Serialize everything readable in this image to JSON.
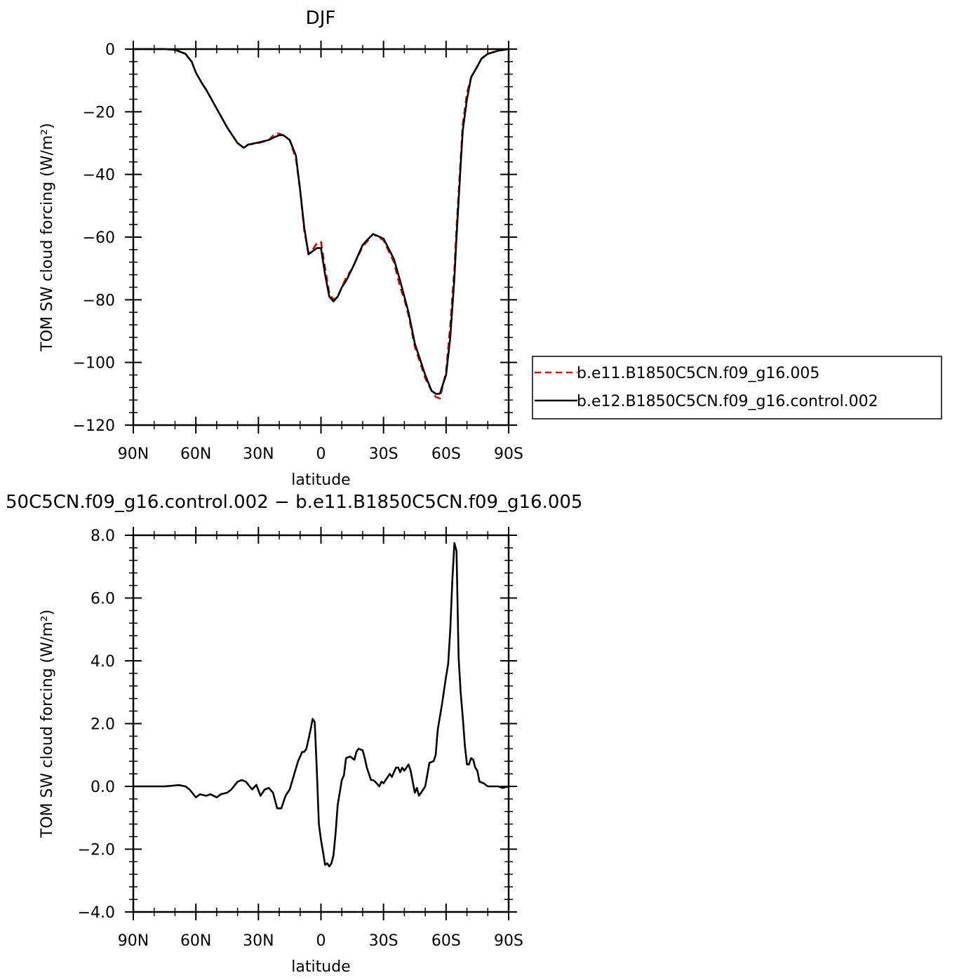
{
  "chart_data": [
    {
      "type": "line",
      "title": "DJF",
      "xlabel": "latitude",
      "ylabel": "TOM SW cloud forcing (W/m²)",
      "xlim": [
        -90,
        90
      ],
      "ylim": [
        -120,
        0
      ],
      "x_ticks": [
        {
          "value": -90,
          "label": "90N"
        },
        {
          "value": -60,
          "label": "60N"
        },
        {
          "value": -30,
          "label": "30N"
        },
        {
          "value": 0,
          "label": "0"
        },
        {
          "value": 30,
          "label": "30S"
        },
        {
          "value": 60,
          "label": "60S"
        },
        {
          "value": 90,
          "label": "90S"
        }
      ],
      "y_ticks": [
        {
          "value": 0,
          "label": "0"
        },
        {
          "value": -20,
          "label": "−20"
        },
        {
          "value": -40,
          "label": "−40"
        },
        {
          "value": -60,
          "label": "−60"
        },
        {
          "value": -80,
          "label": "−80"
        },
        {
          "value": -100,
          "label": "−100"
        },
        {
          "value": -120,
          "label": "−120"
        }
      ],
      "legend": {
        "placement": "right",
        "entries": [
          "b.e11.B1850C5CN.f09_g16.005",
          "b.e12.B1850C5CN.f09_g16.control.002"
        ]
      },
      "series": [
        {
          "name": "b.e11.B1850C5CN.f09_g16.005",
          "color": "#e00000",
          "dash": "dashed",
          "x": [
            -90,
            -85,
            -80,
            -75,
            -70,
            -65,
            -62,
            -60,
            -57,
            -55,
            -50,
            -45,
            -40,
            -37,
            -35,
            -30,
            -25,
            -22,
            -20,
            -18,
            -15,
            -12,
            -10,
            -8,
            -6,
            -4,
            -2,
            0,
            2,
            4,
            6,
            8,
            10,
            12,
            15,
            20,
            22,
            25,
            30,
            35,
            38,
            40,
            42,
            45,
            50,
            53,
            55,
            57,
            60,
            62,
            64,
            65,
            67,
            68,
            70,
            72,
            75,
            77,
            80,
            85,
            90
          ],
          "values": [
            0,
            0,
            0,
            0,
            -0.2,
            -1.5,
            -4,
            -7.5,
            -11,
            -13,
            -19,
            -25,
            -30,
            -31.5,
            -30.5,
            -30,
            -29,
            -27,
            -27,
            -27.5,
            -29,
            -35,
            -45,
            -58,
            -65,
            -64,
            -62,
            -61.5,
            -70,
            -78,
            -80,
            -79,
            -76,
            -73,
            -70,
            -63,
            -61.5,
            -59,
            -61,
            -68,
            -76,
            -80,
            -85,
            -95,
            -105,
            -109,
            -111,
            -111.5,
            -103,
            -88,
            -70,
            -57,
            -35,
            -24,
            -14,
            -9,
            -5.5,
            -3,
            -1.5,
            -0.5,
            0
          ]
        },
        {
          "name": "b.e12.B1850C5CN.f09_g16.control.002",
          "color": "#000000",
          "dash": "solid",
          "x": [
            -90,
            -85,
            -80,
            -75,
            -70,
            -65,
            -62,
            -60,
            -57,
            -55,
            -50,
            -45,
            -40,
            -37,
            -35,
            -30,
            -25,
            -22,
            -20,
            -18,
            -15,
            -12,
            -10,
            -8,
            -6,
            -4,
            -2,
            0,
            2,
            4,
            6,
            8,
            10,
            12,
            15,
            20,
            22,
            25,
            30,
            35,
            38,
            40,
            42,
            45,
            50,
            53,
            55,
            57,
            60,
            62,
            64,
            65,
            67,
            68,
            70,
            72,
            75,
            77,
            80,
            85,
            90
          ],
          "values": [
            0,
            0,
            0,
            0,
            -0.2,
            -1.5,
            -4,
            -7.5,
            -11,
            -13,
            -19,
            -25,
            -30,
            -31.5,
            -30.5,
            -29.8,
            -29,
            -28,
            -27.5,
            -27.5,
            -29,
            -34,
            -45,
            -57,
            -65.5,
            -64.5,
            -63.5,
            -63.5,
            -72,
            -79,
            -80.5,
            -79,
            -76,
            -74,
            -70,
            -62.5,
            -61,
            -59,
            -60.5,
            -67,
            -74,
            -79,
            -84,
            -94,
            -104,
            -109,
            -110,
            -110,
            -104,
            -92,
            -73,
            -60,
            -37,
            -26,
            -16,
            -9,
            -5.5,
            -3,
            -1.5,
            -0.5,
            0
          ]
        }
      ]
    },
    {
      "type": "line",
      "title": "50C5CN.f09_g16.control.002 − b.e11.B1850C5CN.f09_g16.005",
      "xlabel": "latitude",
      "ylabel": "TOM SW cloud forcing (W/m²)",
      "xlim": [
        -90,
        90
      ],
      "ylim": [
        -4,
        8
      ],
      "x_ticks": [
        {
          "value": -90,
          "label": "90N"
        },
        {
          "value": -60,
          "label": "60N"
        },
        {
          "value": -30,
          "label": "30N"
        },
        {
          "value": 0,
          "label": "0"
        },
        {
          "value": 30,
          "label": "30S"
        },
        {
          "value": 60,
          "label": "60S"
        },
        {
          "value": 90,
          "label": "90S"
        }
      ],
      "y_ticks": [
        {
          "value": 8,
          "label": "8.0"
        },
        {
          "value": 6,
          "label": "6.0"
        },
        {
          "value": 4,
          "label": "4.0"
        },
        {
          "value": 2,
          "label": "2.0"
        },
        {
          "value": 0,
          "label": "0.0"
        },
        {
          "value": -2,
          "label": "−2.0"
        },
        {
          "value": -4,
          "label": "−4.0"
        }
      ],
      "series": [
        {
          "color": "#000000",
          "dash": "solid",
          "x": [
            -90,
            -80,
            -75,
            -70,
            -68,
            -65,
            -63,
            -60,
            -58,
            -55,
            -53,
            -50,
            -48,
            -45,
            -43,
            -40,
            -38,
            -36,
            -33,
            -31,
            -29,
            -27,
            -25,
            -23,
            -21,
            -19,
            -17,
            -15,
            -13,
            -11,
            -9,
            -8,
            -7,
            -6,
            -5,
            -4,
            -3,
            -2,
            -1,
            0,
            1,
            2,
            3,
            4,
            5,
            6,
            7,
            8,
            10,
            11,
            12,
            14,
            16,
            17,
            18,
            20,
            21,
            22,
            24,
            25,
            26,
            28,
            29,
            30,
            32,
            33,
            34,
            35,
            36,
            37,
            38,
            39,
            40,
            41,
            42,
            43,
            45,
            46,
            47,
            48,
            50,
            52,
            54,
            55,
            56,
            57,
            58,
            60,
            61,
            62,
            63,
            64,
            65,
            66,
            67,
            68,
            69,
            70,
            71,
            72,
            73,
            74,
            75,
            76,
            78,
            80,
            83,
            85,
            87,
            90
          ],
          "values": [
            0,
            0,
            0,
            0.03,
            0.04,
            0,
            -0.1,
            -0.35,
            -0.25,
            -0.3,
            -0.25,
            -0.35,
            -0.25,
            -0.2,
            -0.1,
            0.15,
            0.2,
            0.15,
            -0.1,
            0.05,
            -0.3,
            -0.1,
            -0.05,
            -0.2,
            -0.7,
            -0.7,
            -0.3,
            -0.1,
            0.35,
            0.8,
            1.1,
            1.1,
            1.2,
            1.5,
            1.8,
            2.15,
            2.05,
            0.5,
            -1.2,
            -1.7,
            -2.1,
            -2.5,
            -2.45,
            -2.55,
            -2.45,
            -2.2,
            -1.5,
            -0.6,
            0.2,
            0.35,
            0.9,
            0.95,
            0.85,
            1.1,
            1.2,
            1.15,
            0.9,
            0.6,
            0.2,
            0.2,
            0.15,
            0.0,
            0.15,
            0.1,
            0.3,
            0.4,
            0.3,
            0.45,
            0.6,
            0.6,
            0.45,
            0.6,
            0.5,
            0.6,
            0.7,
            0.5,
            -0.2,
            -0.05,
            -0.3,
            -0.2,
            0.0,
            0.75,
            0.8,
            1.0,
            1.8,
            2.2,
            2.6,
            3.5,
            3.9,
            5.0,
            6.6,
            7.75,
            7.5,
            4.1,
            3.0,
            2.2,
            1.3,
            0.7,
            0.7,
            0.9,
            0.85,
            0.6,
            0.5,
            0.15,
            0.1,
            0.0,
            0.0,
            0.0,
            -0.05,
            0.0
          ]
        }
      ]
    }
  ]
}
